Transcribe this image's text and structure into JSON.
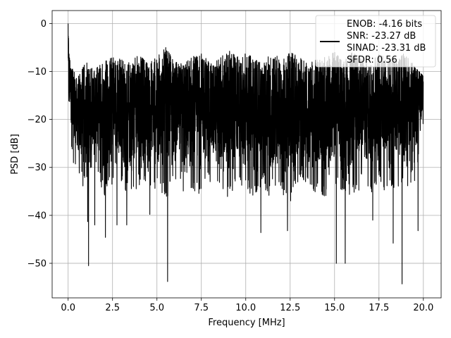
{
  "chart_data": {
    "type": "line",
    "title": "",
    "xlabel": "Frequency [MHz]",
    "ylabel": "PSD [dB]",
    "xlim": [
      -0.9,
      21.0
    ],
    "ylim": [
      -57.2,
      2.7
    ],
    "xticks": [
      0.0,
      2.5,
      5.0,
      7.5,
      10.0,
      12.5,
      15.0,
      17.5,
      20.0
    ],
    "xtick_labels": [
      "0.0",
      "2.5",
      "5.0",
      "7.5",
      "10.0",
      "12.5",
      "15.0",
      "17.5",
      "20.0"
    ],
    "yticks": [
      0,
      -10,
      -20,
      -30,
      -40,
      -50
    ],
    "ytick_labels": [
      "0",
      "−10",
      "−20",
      "−30",
      "−40",
      "−50"
    ],
    "grid": true,
    "legend_position": "top-right",
    "legend_lines": [
      "ENOB: -4.16 bits",
      "SNR: -23.27 dB",
      "SINAD: -23.31 dB",
      "SFDR: 0.56"
    ],
    "series_color": "#000000",
    "envelope": {
      "x": [
        0.0,
        0.05,
        0.15,
        0.3,
        0.6,
        1.0,
        1.5,
        2.0,
        2.5,
        3.0,
        3.5,
        4.0,
        4.5,
        5.0,
        5.5,
        6.0,
        6.5,
        7.0,
        7.5,
        8.0,
        8.5,
        9.0,
        9.5,
        10.0,
        10.5,
        11.0,
        11.5,
        12.0,
        12.5,
        13.0,
        13.5,
        14.0,
        14.5,
        15.0,
        15.5,
        16.0,
        16.5,
        17.0,
        17.5,
        18.0,
        18.5,
        19.0,
        19.5,
        20.0
      ],
      "max": [
        -0.2,
        -5.0,
        -8.5,
        -10.0,
        -11.0,
        -8.0,
        -10.0,
        -7.0,
        -7.0,
        -7.5,
        -8.0,
        -6.5,
        -8.5,
        -7.0,
        -5.0,
        -8.0,
        -8.5,
        -7.0,
        -6.0,
        -8.5,
        -7.5,
        -5.5,
        -7.0,
        -6.0,
        -7.5,
        -8.5,
        -5.5,
        -8.0,
        -6.0,
        -7.0,
        -8.5,
        -7.5,
        -7.0,
        -6.0,
        -8.0,
        -6.0,
        -7.5,
        -8.0,
        -6.5,
        -7.0,
        -7.5,
        -6.0,
        -9.0,
        -11.0
      ],
      "min": [
        -25.0,
        -24.0,
        -26.0,
        -30.0,
        -33.0,
        -35.0,
        -31.0,
        -36.0,
        -34.0,
        -33.0,
        -37.0,
        -34.0,
        -36.0,
        -34.0,
        -37.0,
        -33.0,
        -36.0,
        -35.0,
        -36.0,
        -33.0,
        -35.0,
        -37.0,
        -33.0,
        -35.0,
        -36.0,
        -34.0,
        -37.0,
        -35.0,
        -38.0,
        -33.0,
        -35.0,
        -36.0,
        -37.0,
        -34.0,
        -35.0,
        -37.0,
        -34.0,
        -36.0,
        -33.0,
        -36.0,
        -34.0,
        -35.0,
        -33.0,
        -25.0
      ]
    },
    "deep_dips": [
      {
        "x": 1.1,
        "y": -41.3
      },
      {
        "x": 1.15,
        "y": -50.5
      },
      {
        "x": 1.5,
        "y": -42.0
      },
      {
        "x": 2.1,
        "y": -44.6
      },
      {
        "x": 2.75,
        "y": -42.0
      },
      {
        "x": 3.3,
        "y": -42.0
      },
      {
        "x": 4.6,
        "y": -39.8
      },
      {
        "x": 5.6,
        "y": -53.8
      },
      {
        "x": 10.85,
        "y": -43.6
      },
      {
        "x": 12.35,
        "y": -43.2
      },
      {
        "x": 15.1,
        "y": -50.0
      },
      {
        "x": 15.6,
        "y": -50.0
      },
      {
        "x": 17.15,
        "y": -41.0
      },
      {
        "x": 18.3,
        "y": -45.8
      },
      {
        "x": 18.8,
        "y": -54.3
      },
      {
        "x": 19.7,
        "y": -43.2
      }
    ]
  }
}
